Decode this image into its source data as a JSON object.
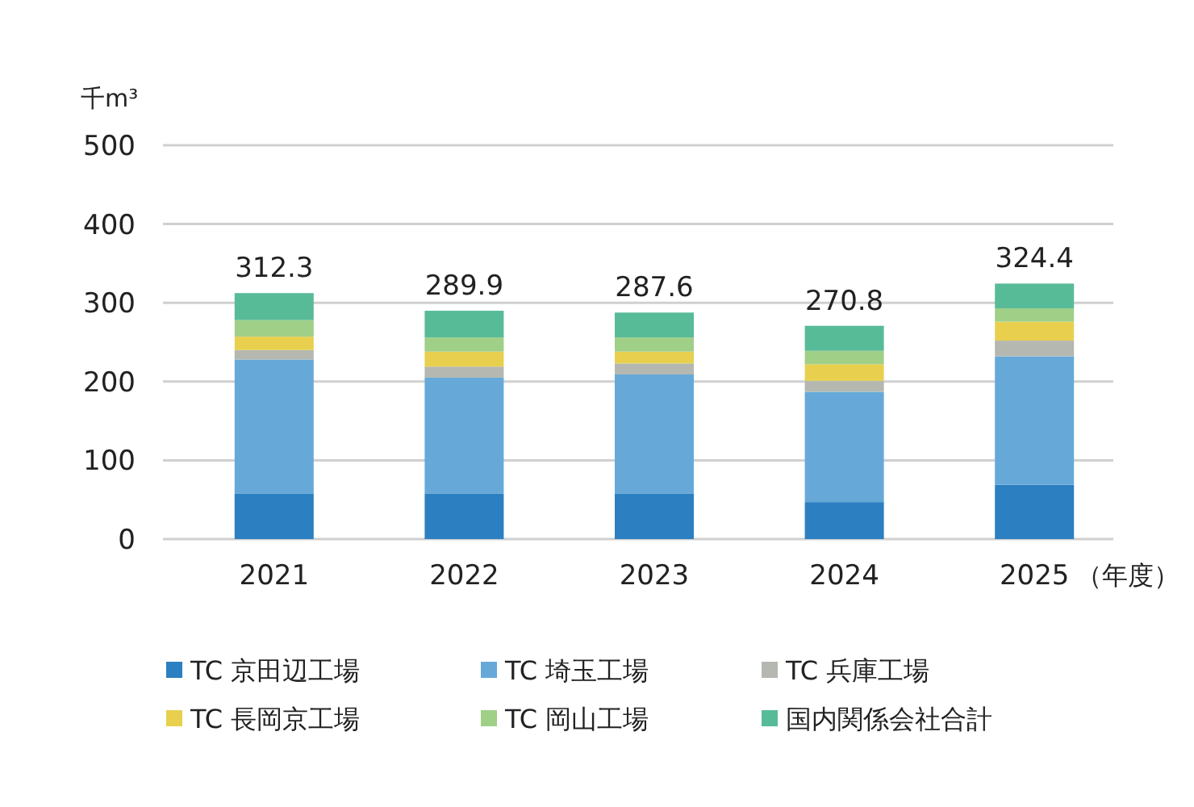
{
  "chart_data": {
    "type": "bar",
    "stacked": true,
    "ylabel": "千m³",
    "xlabel": "（年度）",
    "categories": [
      "2021",
      "2022",
      "2023",
      "2024",
      "2025"
    ],
    "series": [
      {
        "name": "TC 京田辺工場",
        "color": "#2c7fc0",
        "values": [
          58,
          58,
          58,
          47,
          69
        ]
      },
      {
        "name": "TC 埼玉工場",
        "color": "#66a9d9",
        "values": [
          170,
          147,
          151,
          140,
          163
        ]
      },
      {
        "name": "TC 兵庫工場",
        "color": "#b4b8b0",
        "values": [
          12,
          14,
          14,
          14,
          20
        ]
      },
      {
        "name": "TC 長岡京工場",
        "color": "#e8d04e",
        "values": [
          17,
          19,
          15,
          21,
          24
        ]
      },
      {
        "name": "TC 岡山工場",
        "color": "#a0cf88",
        "values": [
          21,
          18,
          18,
          17,
          17
        ]
      },
      {
        "name": "国内関係会社合計",
        "color": "#58bb98",
        "values": [
          34.3,
          33.9,
          31.6,
          31.8,
          31.4
        ]
      }
    ],
    "totals": [
      "312.3",
      "289.9",
      "287.6",
      "270.8",
      "324.4"
    ],
    "ylim": [
      0,
      500
    ],
    "yticks": [
      0,
      100,
      200,
      300,
      400,
      500
    ],
    "grid": "y",
    "legend": "bottom"
  }
}
